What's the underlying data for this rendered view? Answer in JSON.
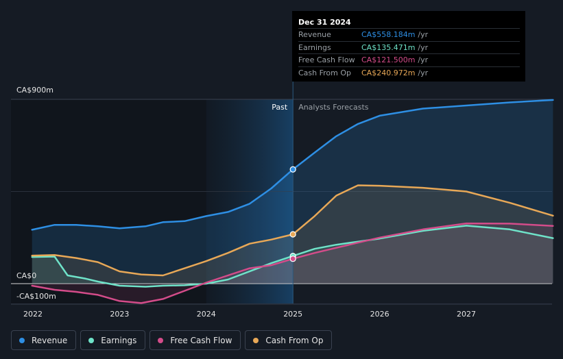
{
  "chart_data": {
    "type": "area",
    "y_axis_labels": [
      "CA$900m",
      "CA$0",
      "-CA$100m"
    ],
    "ylim": [
      -100,
      900
    ],
    "x_ticks": [
      2022,
      2023,
      2024,
      2025,
      2026,
      2027
    ],
    "divider_x": 2025.0,
    "past_label": "Past",
    "forecast_label": "Analysts Forecasts",
    "series": [
      {
        "name": "Revenue",
        "color": "#2e8fe4",
        "points": [
          [
            2021.99,
            263
          ],
          [
            2022.25,
            287
          ],
          [
            2022.5,
            287
          ],
          [
            2022.75,
            280
          ],
          [
            2023.0,
            270
          ],
          [
            2023.3,
            280
          ],
          [
            2023.5,
            300
          ],
          [
            2023.75,
            305
          ],
          [
            2024.0,
            330
          ],
          [
            2024.25,
            350
          ],
          [
            2024.5,
            390
          ],
          [
            2024.75,
            465
          ],
          [
            2025.0,
            558
          ],
          [
            2025.25,
            640
          ],
          [
            2025.5,
            720
          ],
          [
            2025.75,
            780
          ],
          [
            2026.0,
            820
          ],
          [
            2026.5,
            855
          ],
          [
            2027.0,
            870
          ],
          [
            2027.5,
            885
          ],
          [
            2028.0,
            897
          ]
        ]
      },
      {
        "name": "Earnings",
        "color": "#6fe3c9",
        "points": [
          [
            2021.99,
            130
          ],
          [
            2022.25,
            132
          ],
          [
            2022.4,
            40
          ],
          [
            2022.6,
            25
          ],
          [
            2022.75,
            10
          ],
          [
            2023.0,
            -10
          ],
          [
            2023.3,
            -15
          ],
          [
            2023.5,
            -10
          ],
          [
            2023.75,
            -8
          ],
          [
            2024.0,
            0
          ],
          [
            2024.25,
            20
          ],
          [
            2024.5,
            60
          ],
          [
            2024.75,
            100
          ],
          [
            2025.0,
            135
          ],
          [
            2025.25,
            170
          ],
          [
            2025.5,
            190
          ],
          [
            2025.75,
            205
          ],
          [
            2026.0,
            220
          ],
          [
            2026.5,
            258
          ],
          [
            2027.0,
            283
          ],
          [
            2027.5,
            265
          ],
          [
            2028.0,
            222
          ]
        ]
      },
      {
        "name": "Free Cash Flow",
        "color": "#d44c8a",
        "points": [
          [
            2021.99,
            -10
          ],
          [
            2022.25,
            -30
          ],
          [
            2022.5,
            -40
          ],
          [
            2022.75,
            -55
          ],
          [
            2023.0,
            -85
          ],
          [
            2023.25,
            -95
          ],
          [
            2023.5,
            -75
          ],
          [
            2023.75,
            -35
          ],
          [
            2024.0,
            5
          ],
          [
            2024.25,
            40
          ],
          [
            2024.5,
            75
          ],
          [
            2024.75,
            90
          ],
          [
            2025.0,
            121.5
          ],
          [
            2025.25,
            150
          ],
          [
            2025.5,
            175
          ],
          [
            2025.75,
            200
          ],
          [
            2026.0,
            225
          ],
          [
            2026.5,
            265
          ],
          [
            2027.0,
            294
          ],
          [
            2027.5,
            293
          ],
          [
            2028.0,
            282
          ]
        ]
      },
      {
        "name": "Cash From Op",
        "color": "#e8a857",
        "points": [
          [
            2021.99,
            137
          ],
          [
            2022.25,
            140
          ],
          [
            2022.5,
            125
          ],
          [
            2022.75,
            105
          ],
          [
            2023.0,
            60
          ],
          [
            2023.25,
            45
          ],
          [
            2023.5,
            40
          ],
          [
            2023.75,
            75
          ],
          [
            2024.0,
            110
          ],
          [
            2024.25,
            150
          ],
          [
            2024.5,
            195
          ],
          [
            2024.75,
            215
          ],
          [
            2025.0,
            241
          ],
          [
            2025.25,
            330
          ],
          [
            2025.5,
            430
          ],
          [
            2025.75,
            480
          ],
          [
            2026.0,
            478
          ],
          [
            2026.5,
            468
          ],
          [
            2027.0,
            450
          ],
          [
            2027.5,
            395
          ],
          [
            2028.0,
            332
          ]
        ]
      }
    ],
    "highlight_x": 2025.0
  },
  "tooltip": {
    "date": "Dec 31 2024",
    "rows": [
      {
        "label": "Revenue",
        "value": "CA$558.184m",
        "unit": "/yr",
        "color": "#2e8fe4"
      },
      {
        "label": "Earnings",
        "value": "CA$135.471m",
        "unit": "/yr",
        "color": "#6fe3c9"
      },
      {
        "label": "Free Cash Flow",
        "value": "CA$121.500m",
        "unit": "/yr",
        "color": "#d44c8a"
      },
      {
        "label": "Cash From Op",
        "value": "CA$240.972m",
        "unit": "/yr",
        "color": "#e8a857"
      }
    ]
  },
  "legend": [
    {
      "label": "Revenue",
      "color": "#2e8fe4"
    },
    {
      "label": "Earnings",
      "color": "#6fe3c9"
    },
    {
      "label": "Free Cash Flow",
      "color": "#d44c8a"
    },
    {
      "label": "Cash From Op",
      "color": "#e8a857"
    }
  ]
}
